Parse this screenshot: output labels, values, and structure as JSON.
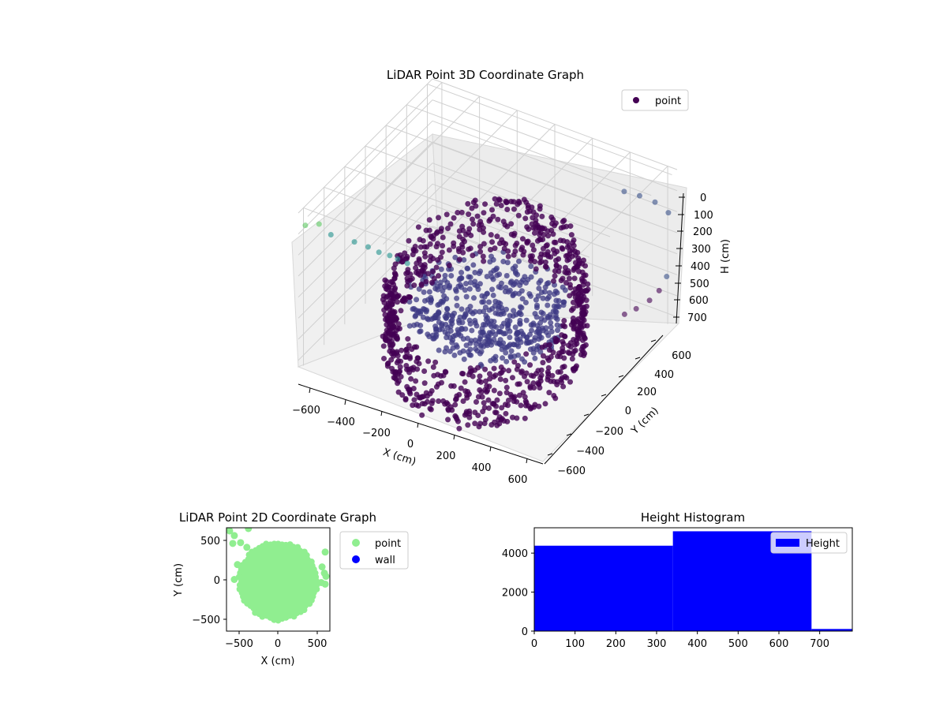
{
  "colors": {
    "point3d_dark": "#440154",
    "point3d_mid": "#3b528b",
    "point3d_teal": "#21918c",
    "point3d_light": "#5ec962",
    "point2d": "#90ee90",
    "wall": "#0000ff",
    "histogram": "#0000ff"
  },
  "chart_data": [
    {
      "type": "scatter",
      "projection": "3d",
      "title": "LiDAR Point 3D Coordinate Graph",
      "xlabel": "X (cm)",
      "ylabel": "Y (cm)",
      "zlabel": "H (cm)",
      "xticks": [
        "−600",
        "−400",
        "−200",
        "0",
        "200",
        "400",
        "600"
      ],
      "yticks": [
        "−600",
        "−400",
        "−200",
        "0",
        "200",
        "400",
        "600"
      ],
      "zticks": [
        "0",
        "100",
        "200",
        "300",
        "400",
        "500",
        "600",
        "700"
      ],
      "xlim": [
        -650,
        650
      ],
      "ylim": [
        -650,
        650
      ],
      "zlim": [
        0,
        750
      ],
      "z_inverted": true,
      "grid": true,
      "legend": {
        "placement": "top-right",
        "entries": [
          {
            "name": "point",
            "color": "#440154"
          }
        ]
      },
      "series": [
        {
          "name": "point",
          "shape": "dense ring of points at radius about 450 cm with inner disc, plus scattered outliers",
          "outliers": [
            {
              "x": -640,
              "y": -600,
              "h": 80,
              "tone": "light"
            },
            {
              "x": -600,
              "y": -540,
              "h": 90,
              "tone": "light"
            },
            {
              "x": -570,
              "y": -480,
              "h": 160,
              "tone": "teal"
            },
            {
              "x": -500,
              "y": -380,
              "h": 220,
              "tone": "teal"
            },
            {
              "x": -460,
              "y": -320,
              "h": 260,
              "tone": "teal"
            },
            {
              "x": -430,
              "y": -270,
              "h": 300,
              "tone": "teal"
            },
            {
              "x": -400,
              "y": -220,
              "h": 330,
              "tone": "teal"
            },
            {
              "x": -380,
              "y": -180,
              "h": 360,
              "tone": "teal"
            },
            {
              "x": -350,
              "y": -140,
              "h": 390,
              "tone": "teal"
            },
            {
              "x": 420,
              "y": 560,
              "h": 720,
              "tone": "dark"
            },
            {
              "x": 460,
              "y": 600,
              "h": 700,
              "tone": "dark"
            },
            {
              "x": 520,
              "y": 620,
              "h": 650,
              "tone": "dark"
            },
            {
              "x": 560,
              "y": 640,
              "h": 600,
              "tone": "dark"
            },
            {
              "x": 600,
              "y": 640,
              "h": 520,
              "tone": "mid"
            },
            {
              "x": 620,
              "y": 620,
              "h": 200,
              "tone": "mid"
            },
            {
              "x": 560,
              "y": 600,
              "h": 160,
              "tone": "mid"
            },
            {
              "x": 500,
              "y": 560,
              "h": 130,
              "tone": "mid"
            },
            {
              "x": 440,
              "y": 520,
              "h": 110,
              "tone": "mid"
            }
          ]
        }
      ]
    },
    {
      "type": "scatter",
      "title": "LiDAR Point 2D Coordinate Graph",
      "xlabel": "X (cm)",
      "ylabel": "Y (cm)",
      "xlim": [
        -660,
        660
      ],
      "ylim": [
        -660,
        660
      ],
      "xticks": [
        -500,
        0,
        500
      ],
      "yticks": [
        -500,
        0,
        500
      ],
      "legend": {
        "placement": "outside-right",
        "entries": [
          {
            "name": "point",
            "color": "#90ee90"
          },
          {
            "name": "wall",
            "color": "#0000ff"
          }
        ]
      },
      "series": [
        {
          "name": "point",
          "shape": "filled disc centered near (0, -20) with radius about 480 cm",
          "center": [
            0,
            -20
          ],
          "radius": 480
        },
        {
          "name": "wall",
          "points": []
        }
      ],
      "outliers": [
        {
          "x": -620,
          "y": 620
        },
        {
          "x": -560,
          "y": 560
        },
        {
          "x": -480,
          "y": 470
        },
        {
          "x": -580,
          "y": 460
        },
        {
          "x": -380,
          "y": 650
        },
        {
          "x": -400,
          "y": 410
        },
        {
          "x": -520,
          "y": 190
        },
        {
          "x": -560,
          "y": 0
        },
        {
          "x": 600,
          "y": 350
        },
        {
          "x": 560,
          "y": 160
        },
        {
          "x": 590,
          "y": 80
        },
        {
          "x": 610,
          "y": 40
        },
        {
          "x": 550,
          "y": -40
        },
        {
          "x": 600,
          "y": -60
        }
      ]
    },
    {
      "type": "bar",
      "subtype": "histogram",
      "title": "Height Histogram",
      "xlabel": "",
      "ylabel": "",
      "xlim": [
        0,
        780
      ],
      "ylim": [
        0,
        5300
      ],
      "xticks": [
        0,
        100,
        200,
        300,
        400,
        500,
        600,
        700
      ],
      "yticks": [
        0,
        2000,
        4000
      ],
      "legend": {
        "placement": "top-right",
        "entries": [
          {
            "name": "Height",
            "color": "#0000ff"
          }
        ]
      },
      "bins": [
        {
          "start": 0,
          "end": 340,
          "count": 4380
        },
        {
          "start": 340,
          "end": 680,
          "count": 5120
        },
        {
          "start": 680,
          "end": 780,
          "count": 110
        }
      ]
    }
  ]
}
